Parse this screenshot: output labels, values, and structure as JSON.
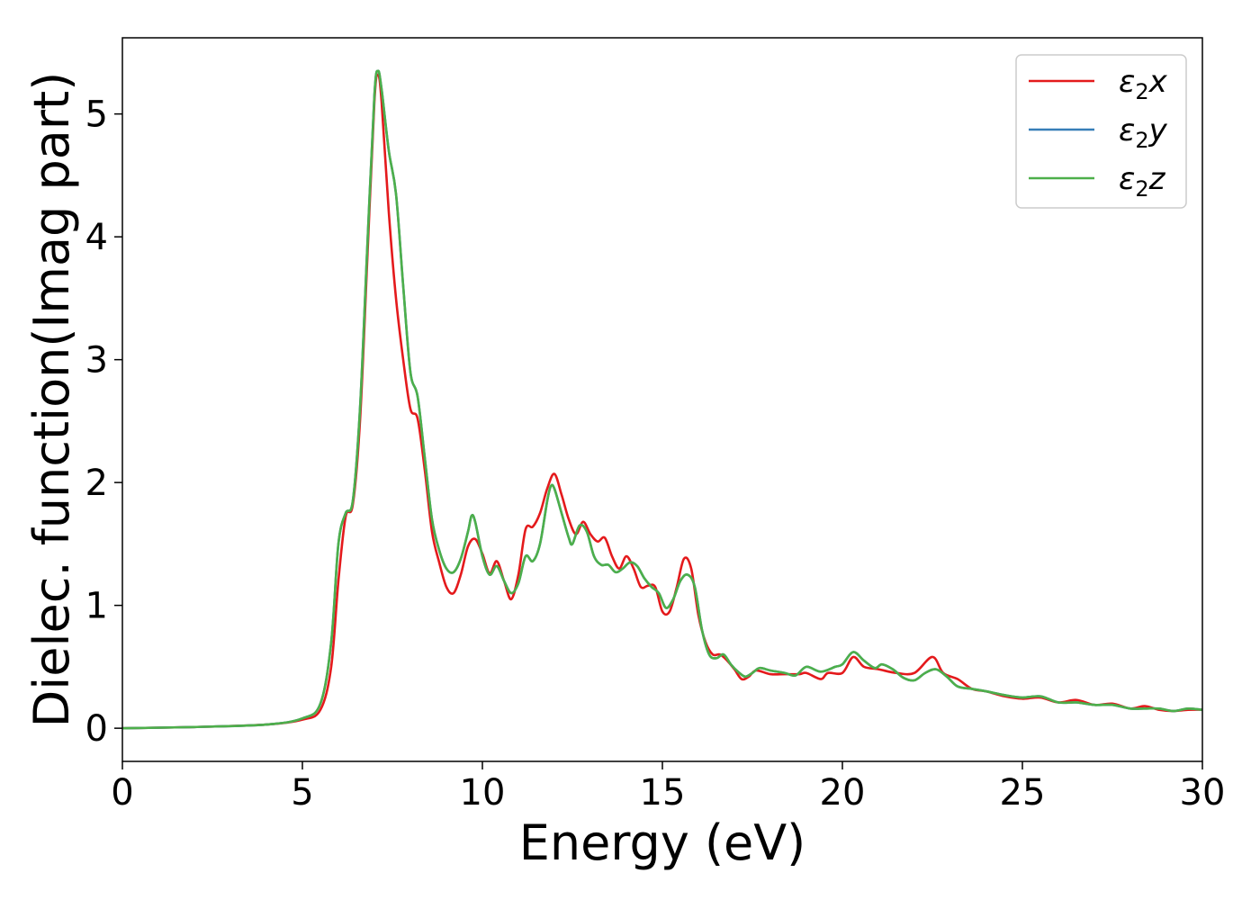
{
  "chart_data": {
    "type": "line",
    "title": "",
    "xlabel": "Energy (eV)",
    "ylabel": "Dielec. function(Imag part)",
    "xlim": [
      0,
      30
    ],
    "ylim": [
      -0.27,
      5.62
    ],
    "xticks": [
      0,
      5,
      10,
      15,
      20,
      25,
      30
    ],
    "yticks": [
      0,
      1,
      2,
      3,
      4,
      5
    ],
    "grid": false,
    "legend_position": "top-right",
    "series": [
      {
        "name": "ε2x",
        "legend_base": "ε",
        "legend_sub": "2",
        "legend_var": "x",
        "color": "#e41a1c",
        "points": [
          [
            0,
            0.0
          ],
          [
            2,
            0.01
          ],
          [
            4,
            0.03
          ],
          [
            5,
            0.07
          ],
          [
            5.5,
            0.15
          ],
          [
            5.8,
            0.5
          ],
          [
            6.0,
            1.2
          ],
          [
            6.2,
            1.72
          ],
          [
            6.4,
            1.82
          ],
          [
            6.6,
            2.5
          ],
          [
            6.8,
            3.8
          ],
          [
            7.0,
            5.1
          ],
          [
            7.1,
            5.32
          ],
          [
            7.2,
            5.1
          ],
          [
            7.4,
            4.2
          ],
          [
            7.6,
            3.5
          ],
          [
            7.8,
            3.0
          ],
          [
            8.0,
            2.6
          ],
          [
            8.2,
            2.52
          ],
          [
            8.4,
            2.1
          ],
          [
            8.6,
            1.6
          ],
          [
            8.8,
            1.35
          ],
          [
            9.0,
            1.15
          ],
          [
            9.2,
            1.1
          ],
          [
            9.4,
            1.25
          ],
          [
            9.6,
            1.48
          ],
          [
            9.8,
            1.54
          ],
          [
            10.0,
            1.42
          ],
          [
            10.2,
            1.26
          ],
          [
            10.4,
            1.36
          ],
          [
            10.6,
            1.2
          ],
          [
            10.8,
            1.05
          ],
          [
            11.0,
            1.25
          ],
          [
            11.2,
            1.62
          ],
          [
            11.4,
            1.64
          ],
          [
            11.6,
            1.75
          ],
          [
            11.8,
            1.95
          ],
          [
            12.0,
            2.07
          ],
          [
            12.2,
            1.9
          ],
          [
            12.4,
            1.7
          ],
          [
            12.6,
            1.58
          ],
          [
            12.8,
            1.68
          ],
          [
            13.0,
            1.58
          ],
          [
            13.2,
            1.52
          ],
          [
            13.4,
            1.55
          ],
          [
            13.6,
            1.4
          ],
          [
            13.8,
            1.3
          ],
          [
            14.0,
            1.4
          ],
          [
            14.2,
            1.3
          ],
          [
            14.4,
            1.15
          ],
          [
            14.6,
            1.16
          ],
          [
            14.8,
            1.15
          ],
          [
            15.0,
            0.95
          ],
          [
            15.2,
            0.95
          ],
          [
            15.4,
            1.15
          ],
          [
            15.6,
            1.38
          ],
          [
            15.8,
            1.3
          ],
          [
            16.0,
            0.92
          ],
          [
            16.2,
            0.7
          ],
          [
            16.4,
            0.6
          ],
          [
            16.6,
            0.6
          ],
          [
            16.8,
            0.55
          ],
          [
            17.0,
            0.48
          ],
          [
            17.2,
            0.4
          ],
          [
            17.4,
            0.42
          ],
          [
            17.6,
            0.47
          ],
          [
            18.0,
            0.44
          ],
          [
            18.4,
            0.44
          ],
          [
            18.8,
            0.44
          ],
          [
            19.0,
            0.45
          ],
          [
            19.4,
            0.4
          ],
          [
            19.6,
            0.45
          ],
          [
            20.0,
            0.45
          ],
          [
            20.3,
            0.58
          ],
          [
            20.6,
            0.5
          ],
          [
            21.0,
            0.48
          ],
          [
            21.5,
            0.45
          ],
          [
            22.0,
            0.45
          ],
          [
            22.5,
            0.58
          ],
          [
            22.8,
            0.45
          ],
          [
            23.2,
            0.4
          ],
          [
            23.6,
            0.32
          ],
          [
            24.0,
            0.3
          ],
          [
            24.5,
            0.26
          ],
          [
            25.0,
            0.24
          ],
          [
            25.5,
            0.25
          ],
          [
            26.0,
            0.21
          ],
          [
            26.5,
            0.23
          ],
          [
            27.0,
            0.19
          ],
          [
            27.5,
            0.2
          ],
          [
            28.0,
            0.16
          ],
          [
            28.4,
            0.18
          ],
          [
            28.8,
            0.15
          ],
          [
            29.2,
            0.14
          ],
          [
            29.6,
            0.15
          ],
          [
            30.0,
            0.15
          ]
        ]
      },
      {
        "name": "ε2y",
        "legend_base": "ε",
        "legend_sub": "2",
        "legend_var": "y",
        "color": "#377eb8",
        "points": [
          [
            0,
            0.0
          ],
          [
            2,
            0.01
          ],
          [
            4,
            0.03
          ],
          [
            5,
            0.08
          ],
          [
            5.5,
            0.2
          ],
          [
            5.8,
            0.7
          ],
          [
            6.0,
            1.5
          ],
          [
            6.2,
            1.75
          ],
          [
            6.4,
            1.85
          ],
          [
            6.6,
            2.6
          ],
          [
            6.8,
            3.9
          ],
          [
            7.0,
            5.15
          ],
          [
            7.1,
            5.35
          ],
          [
            7.2,
            5.2
          ],
          [
            7.4,
            4.7
          ],
          [
            7.6,
            4.35
          ],
          [
            7.8,
            3.6
          ],
          [
            8.0,
            2.9
          ],
          [
            8.2,
            2.7
          ],
          [
            8.4,
            2.2
          ],
          [
            8.6,
            1.7
          ],
          [
            8.8,
            1.45
          ],
          [
            9.0,
            1.3
          ],
          [
            9.2,
            1.27
          ],
          [
            9.4,
            1.38
          ],
          [
            9.6,
            1.6
          ],
          [
            9.7,
            1.73
          ],
          [
            9.8,
            1.68
          ],
          [
            10.0,
            1.4
          ],
          [
            10.2,
            1.25
          ],
          [
            10.4,
            1.32
          ],
          [
            10.6,
            1.2
          ],
          [
            10.8,
            1.1
          ],
          [
            11.0,
            1.18
          ],
          [
            11.2,
            1.4
          ],
          [
            11.4,
            1.36
          ],
          [
            11.6,
            1.5
          ],
          [
            11.8,
            1.85
          ],
          [
            11.9,
            1.97
          ],
          [
            12.0,
            1.95
          ],
          [
            12.2,
            1.75
          ],
          [
            12.4,
            1.55
          ],
          [
            12.5,
            1.5
          ],
          [
            12.7,
            1.65
          ],
          [
            12.9,
            1.6
          ],
          [
            13.1,
            1.4
          ],
          [
            13.3,
            1.33
          ],
          [
            13.5,
            1.33
          ],
          [
            13.7,
            1.27
          ],
          [
            13.9,
            1.3
          ],
          [
            14.1,
            1.35
          ],
          [
            14.3,
            1.32
          ],
          [
            14.5,
            1.22
          ],
          [
            14.7,
            1.15
          ],
          [
            14.9,
            1.1
          ],
          [
            15.1,
            0.98
          ],
          [
            15.3,
            1.05
          ],
          [
            15.5,
            1.2
          ],
          [
            15.7,
            1.25
          ],
          [
            15.9,
            1.15
          ],
          [
            16.1,
            0.8
          ],
          [
            16.3,
            0.6
          ],
          [
            16.5,
            0.57
          ],
          [
            16.7,
            0.6
          ],
          [
            16.9,
            0.52
          ],
          [
            17.1,
            0.46
          ],
          [
            17.3,
            0.42
          ],
          [
            17.5,
            0.45
          ],
          [
            17.7,
            0.49
          ],
          [
            18.0,
            0.47
          ],
          [
            18.4,
            0.45
          ],
          [
            18.7,
            0.43
          ],
          [
            19.0,
            0.5
          ],
          [
            19.4,
            0.46
          ],
          [
            19.8,
            0.5
          ],
          [
            20.0,
            0.52
          ],
          [
            20.3,
            0.62
          ],
          [
            20.6,
            0.55
          ],
          [
            20.9,
            0.49
          ],
          [
            21.1,
            0.52
          ],
          [
            21.4,
            0.48
          ],
          [
            21.7,
            0.41
          ],
          [
            22.0,
            0.39
          ],
          [
            22.3,
            0.45
          ],
          [
            22.6,
            0.48
          ],
          [
            22.9,
            0.42
          ],
          [
            23.2,
            0.34
          ],
          [
            23.6,
            0.32
          ],
          [
            24.0,
            0.3
          ],
          [
            24.5,
            0.27
          ],
          [
            25.0,
            0.25
          ],
          [
            25.5,
            0.26
          ],
          [
            26.0,
            0.21
          ],
          [
            26.5,
            0.21
          ],
          [
            27.0,
            0.19
          ],
          [
            27.5,
            0.19
          ],
          [
            28.0,
            0.16
          ],
          [
            28.4,
            0.16
          ],
          [
            28.8,
            0.16
          ],
          [
            29.2,
            0.14
          ],
          [
            29.6,
            0.16
          ],
          [
            30.0,
            0.15
          ]
        ]
      },
      {
        "name": "ε2z",
        "legend_base": "ε",
        "legend_sub": "2",
        "legend_var": "z",
        "color": "#4daf4a",
        "points": [
          [
            0,
            0.0
          ],
          [
            2,
            0.01
          ],
          [
            4,
            0.03
          ],
          [
            5,
            0.08
          ],
          [
            5.5,
            0.2
          ],
          [
            5.8,
            0.7
          ],
          [
            6.0,
            1.5
          ],
          [
            6.2,
            1.75
          ],
          [
            6.4,
            1.85
          ],
          [
            6.6,
            2.6
          ],
          [
            6.8,
            3.9
          ],
          [
            7.0,
            5.15
          ],
          [
            7.1,
            5.35
          ],
          [
            7.2,
            5.2
          ],
          [
            7.4,
            4.7
          ],
          [
            7.6,
            4.35
          ],
          [
            7.8,
            3.6
          ],
          [
            8.0,
            2.9
          ],
          [
            8.2,
            2.7
          ],
          [
            8.4,
            2.2
          ],
          [
            8.6,
            1.7
          ],
          [
            8.8,
            1.45
          ],
          [
            9.0,
            1.3
          ],
          [
            9.2,
            1.27
          ],
          [
            9.4,
            1.38
          ],
          [
            9.6,
            1.6
          ],
          [
            9.7,
            1.73
          ],
          [
            9.8,
            1.68
          ],
          [
            10.0,
            1.4
          ],
          [
            10.2,
            1.25
          ],
          [
            10.4,
            1.32
          ],
          [
            10.6,
            1.2
          ],
          [
            10.8,
            1.1
          ],
          [
            11.0,
            1.18
          ],
          [
            11.2,
            1.4
          ],
          [
            11.4,
            1.36
          ],
          [
            11.6,
            1.5
          ],
          [
            11.8,
            1.85
          ],
          [
            11.9,
            1.97
          ],
          [
            12.0,
            1.95
          ],
          [
            12.2,
            1.75
          ],
          [
            12.4,
            1.55
          ],
          [
            12.5,
            1.5
          ],
          [
            12.7,
            1.65
          ],
          [
            12.9,
            1.6
          ],
          [
            13.1,
            1.4
          ],
          [
            13.3,
            1.33
          ],
          [
            13.5,
            1.33
          ],
          [
            13.7,
            1.27
          ],
          [
            13.9,
            1.3
          ],
          [
            14.1,
            1.35
          ],
          [
            14.3,
            1.32
          ],
          [
            14.5,
            1.22
          ],
          [
            14.7,
            1.15
          ],
          [
            14.9,
            1.1
          ],
          [
            15.1,
            0.98
          ],
          [
            15.3,
            1.05
          ],
          [
            15.5,
            1.2
          ],
          [
            15.7,
            1.25
          ],
          [
            15.9,
            1.15
          ],
          [
            16.1,
            0.8
          ],
          [
            16.3,
            0.6
          ],
          [
            16.5,
            0.57
          ],
          [
            16.7,
            0.6
          ],
          [
            16.9,
            0.52
          ],
          [
            17.1,
            0.46
          ],
          [
            17.3,
            0.42
          ],
          [
            17.5,
            0.45
          ],
          [
            17.7,
            0.49
          ],
          [
            18.0,
            0.47
          ],
          [
            18.4,
            0.45
          ],
          [
            18.7,
            0.43
          ],
          [
            19.0,
            0.5
          ],
          [
            19.4,
            0.46
          ],
          [
            19.8,
            0.5
          ],
          [
            20.0,
            0.52
          ],
          [
            20.3,
            0.62
          ],
          [
            20.6,
            0.55
          ],
          [
            20.9,
            0.49
          ],
          [
            21.1,
            0.52
          ],
          [
            21.4,
            0.48
          ],
          [
            21.7,
            0.41
          ],
          [
            22.0,
            0.39
          ],
          [
            22.3,
            0.45
          ],
          [
            22.6,
            0.48
          ],
          [
            22.9,
            0.42
          ],
          [
            23.2,
            0.34
          ],
          [
            23.6,
            0.32
          ],
          [
            24.0,
            0.3
          ],
          [
            24.5,
            0.27
          ],
          [
            25.0,
            0.25
          ],
          [
            25.5,
            0.26
          ],
          [
            26.0,
            0.21
          ],
          [
            26.5,
            0.21
          ],
          [
            27.0,
            0.19
          ],
          [
            27.5,
            0.19
          ],
          [
            28.0,
            0.16
          ],
          [
            28.4,
            0.16
          ],
          [
            28.8,
            0.16
          ],
          [
            29.2,
            0.14
          ],
          [
            29.6,
            0.16
          ],
          [
            30.0,
            0.15
          ]
        ]
      }
    ]
  }
}
